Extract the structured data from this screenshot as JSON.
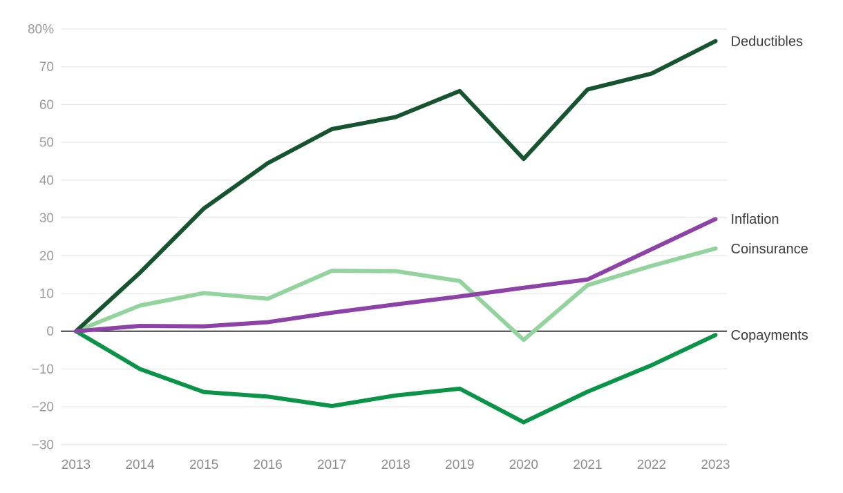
{
  "chart_data": {
    "type": "line",
    "title": "",
    "xlabel": "",
    "ylabel": "",
    "x": [
      2013,
      2014,
      2015,
      2016,
      2017,
      2018,
      2019,
      2020,
      2021,
      2022,
      2023
    ],
    "xtick_labels": [
      "2013",
      "2014",
      "2015",
      "2016",
      "2017",
      "2018",
      "2019",
      "2020",
      "2021",
      "2022",
      "2023"
    ],
    "series": [
      {
        "name": "Deductibles",
        "color": "#16542f",
        "values": [
          0,
          15.5,
          32.5,
          44.5,
          53.5,
          56.7,
          63.6,
          45.6,
          64.0,
          68.2,
          76.8
        ]
      },
      {
        "name": "Inflation",
        "color": "#8d42a8",
        "values": [
          0,
          1.4,
          1.3,
          2.4,
          4.9,
          7.1,
          9.2,
          11.5,
          13.7,
          21.7,
          29.7
        ]
      },
      {
        "name": "Coinsurance",
        "color": "#93d49e",
        "values": [
          0,
          6.8,
          10.1,
          8.6,
          16.0,
          15.9,
          13.3,
          -2.3,
          12.2,
          17.3,
          21.9
        ]
      },
      {
        "name": "Copayments",
        "color": "#0a9447",
        "values": [
          0,
          -10.0,
          -16.1,
          -17.3,
          -19.8,
          -17.0,
          -15.2,
          -24.1,
          -16.0,
          -9.0,
          -1.0
        ]
      }
    ],
    "ylim": [
      -30,
      80
    ],
    "yticks": [
      80,
      70,
      60,
      50,
      40,
      30,
      20,
      10,
      0,
      -10,
      -20,
      -30
    ],
    "ytick_labels": [
      "80%",
      "70",
      "60",
      "50",
      "40",
      "30",
      "20",
      "10",
      "0",
      "−10",
      "−20",
      "−30"
    ],
    "grid": "horizontal",
    "gridline_color": "#e7e7e7",
    "zero_line_color": "#2f2f2f",
    "legend_position": "right-end-labels"
  }
}
